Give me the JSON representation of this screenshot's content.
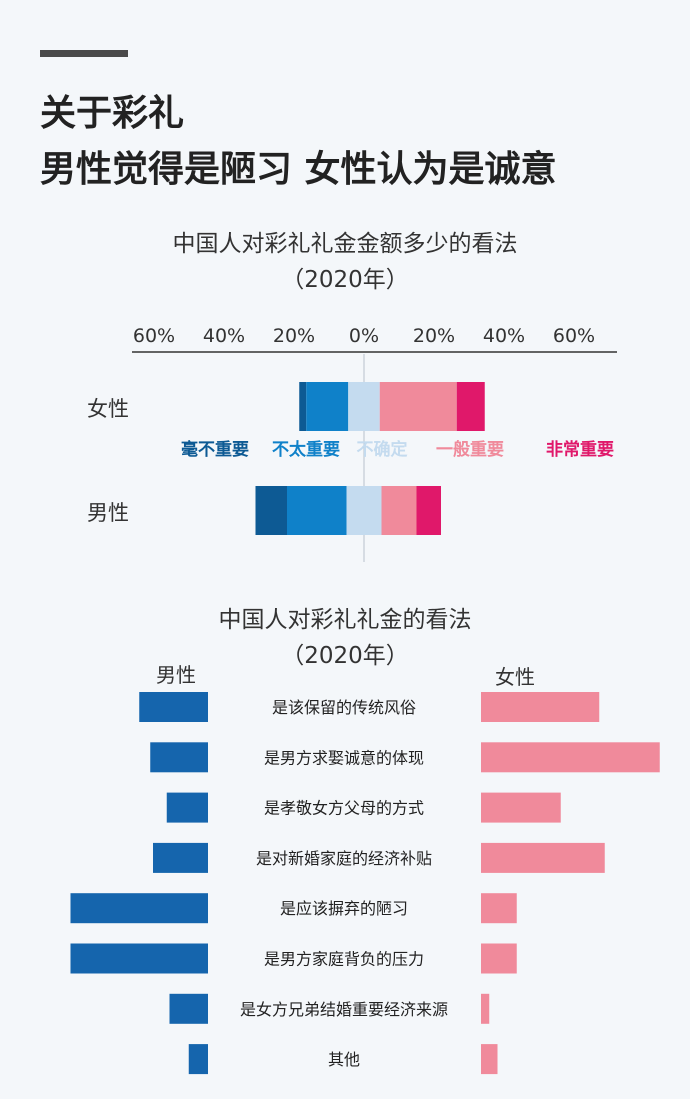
{
  "headline": {
    "line1": "关于彩礼",
    "line2": "男性觉得是陋习  女性认为是诚意"
  },
  "chart1_title": {
    "line1": "中国人对彩礼礼金金额多少的看法",
    "line2": "（2020年）"
  },
  "chart2_title": {
    "line1": "中国人对彩礼礼金的看法",
    "line2": "（2020年）"
  },
  "colors": {
    "dark_blue": "#0d5a94",
    "blue": "#0f81c9",
    "light_blue": "#c4dbef",
    "pink": "#f08a9b",
    "magenta": "#e0186a",
    "bar_blue": "#1565ad",
    "bar_pink": "#f08a9b"
  },
  "chart_data": [
    {
      "type": "bar",
      "subtype": "diverging-stacked",
      "title": "中国人对彩礼礼金金额多少的看法（2020年）",
      "x_ticks": [
        "60%",
        "40%",
        "20%",
        "0%",
        "20%",
        "40%",
        "60%"
      ],
      "xlim": [
        -60,
        60
      ],
      "categories": [
        "女性",
        "男性"
      ],
      "legend": [
        "毫不重要",
        "不太重要",
        "不确定",
        "一般重要",
        "非常重要"
      ],
      "series": [
        {
          "name": "毫不重要",
          "side": "negative",
          "values": [
            2,
            9
          ]
        },
        {
          "name": "不太重要",
          "side": "negative",
          "values": [
            12,
            17
          ]
        },
        {
          "name": "不确定",
          "side": "center",
          "values": [
            9,
            10
          ]
        },
        {
          "name": "一般重要",
          "side": "positive",
          "values": [
            22,
            10
          ]
        },
        {
          "name": "非常重要",
          "side": "positive",
          "values": [
            8,
            7
          ]
        }
      ]
    },
    {
      "type": "bar",
      "subtype": "butterfly",
      "title": "中国人对彩礼礼金的看法（2020年）",
      "left_label": "男性",
      "right_label": "女性",
      "categories": [
        "是该保留的传统风俗",
        "是男方求娶诚意的体现",
        "是孝敬女方父母的方式",
        "是对新婚家庭的经济补贴",
        "是应该摒弃的陋习",
        "是男方家庭背负的压力",
        "是女方兄弟结婚重要经济来源",
        "其他"
      ],
      "series": [
        {
          "name": "男性",
          "values": [
            25,
            21,
            15,
            20,
            50,
            50,
            14,
            7
          ]
        },
        {
          "name": "女性",
          "values": [
            43,
            65,
            29,
            45,
            13,
            13,
            3,
            6
          ]
        }
      ]
    }
  ]
}
